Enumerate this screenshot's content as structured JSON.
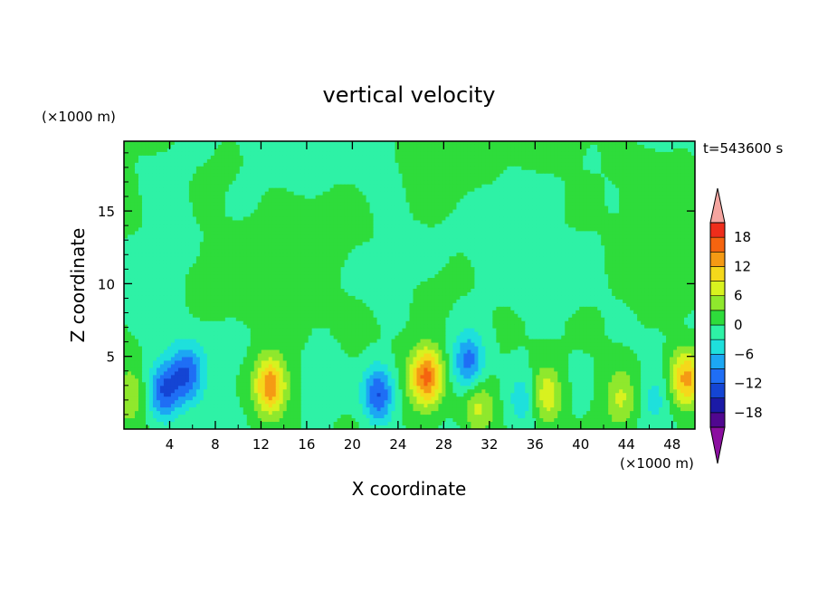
{
  "chart_data": {
    "type": "heatmap",
    "title": "vertical velocity",
    "xlabel": "X coordinate",
    "ylabel": "Z coordinate",
    "x_unit": "(×1000 m)",
    "y_unit": "(×1000 m)",
    "time_label": "t=543600 s",
    "xlim": [
      0,
      50
    ],
    "ylim": [
      0,
      19.8
    ],
    "x_ticks": [
      4,
      8,
      12,
      16,
      20,
      24,
      28,
      32,
      36,
      40,
      44,
      48
    ],
    "y_ticks": [
      5,
      10,
      15
    ],
    "x_tick_labels": [
      "4",
      "8",
      "12",
      "16",
      "20",
      "24",
      "28",
      "32",
      "36",
      "40",
      "44",
      "48"
    ],
    "y_tick_labels": [
      "5",
      "10",
      "15"
    ],
    "colorbar": {
      "levels": [
        -21,
        -18,
        -15,
        -12,
        -9,
        -6,
        -3,
        0,
        3,
        6,
        9,
        12,
        15,
        18,
        21
      ],
      "tick_values": [
        -18,
        -12,
        -6,
        0,
        6,
        12,
        18
      ],
      "tick_labels": [
        "−18",
        "−12",
        "−6",
        "0",
        "6",
        "12",
        "18"
      ],
      "colors": [
        "#50078f",
        "#1b1aa6",
        "#1445d4",
        "#1f6ef5",
        "#1ca7f3",
        "#1ee0dc",
        "#2ef2a6",
        "#2edc3b",
        "#8fe82d",
        "#d8f21f",
        "#f5d81b",
        "#f59a14",
        "#f5640f",
        "#ee2d1b"
      ],
      "under_color": "#8b0fa0",
      "over_color": "#f5a5a0"
    },
    "features": [
      {
        "x": 3.5,
        "z": 2.6,
        "w": -12
      },
      {
        "x": 5.5,
        "z": 3.8,
        "w": -11
      },
      {
        "x": 12.8,
        "z": 3.0,
        "w": 15
      },
      {
        "x": 17.5,
        "z": 4.0,
        "w": -3
      },
      {
        "x": 22.3,
        "z": 2.4,
        "w": -13
      },
      {
        "x": 26.5,
        "z": 3.6,
        "w": 16
      },
      {
        "x": 30.2,
        "z": 4.5,
        "w": -11
      },
      {
        "x": 31.0,
        "z": 1.5,
        "w": 7
      },
      {
        "x": 35.0,
        "z": 2.0,
        "w": -5
      },
      {
        "x": 37.0,
        "z": 2.3,
        "w": 9
      },
      {
        "x": 43.5,
        "z": 2.0,
        "w": 6
      },
      {
        "x": 46.5,
        "z": 2.0,
        "w": -4
      },
      {
        "x": 49.2,
        "z": 3.5,
        "w": 13
      },
      {
        "x": 0.5,
        "z": 2.5,
        "w": 6
      }
    ]
  }
}
